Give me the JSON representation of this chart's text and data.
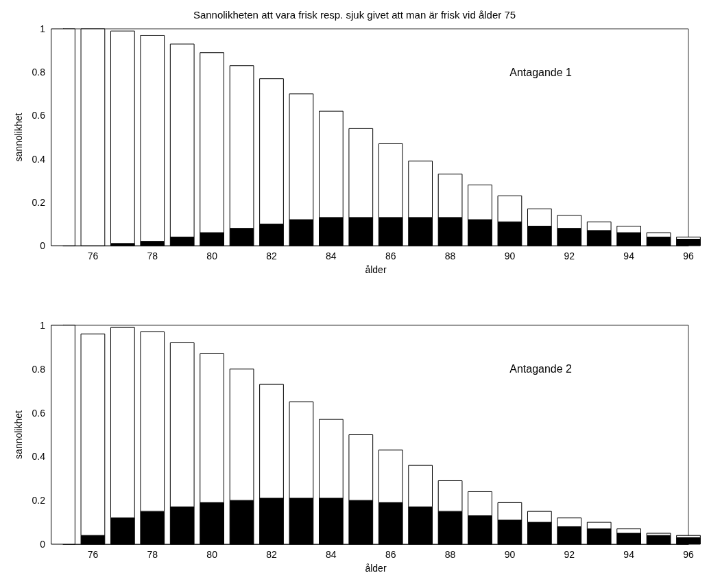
{
  "chart_data": [
    {
      "type": "bar",
      "title": "Sannolikheten att vara frisk resp. sjuk givet att man är frisk vid ålder 75",
      "xlabel": "ålder",
      "ylabel": "sannolikhet",
      "annotations": [
        "Antagande 1"
      ],
      "stacked": true,
      "x": [
        75,
        76,
        77,
        78,
        79,
        80,
        81,
        82,
        83,
        84,
        85,
        86,
        87,
        88,
        89,
        90,
        91,
        92,
        93,
        94,
        95,
        96
      ],
      "series": [
        {
          "color": "#000000",
          "values": [
            0,
            0,
            0.01,
            0.02,
            0.04,
            0.06,
            0.08,
            0.1,
            0.12,
            0.13,
            0.13,
            0.13,
            0.13,
            0.13,
            0.12,
            0.11,
            0.09,
            0.08,
            0.07,
            0.06,
            0.04,
            0.03
          ]
        },
        {
          "color": "#ffffff",
          "values": [
            1,
            1,
            0.98,
            0.95,
            0.89,
            0.83,
            0.75,
            0.67,
            0.58,
            0.49,
            0.41,
            0.34,
            0.26,
            0.2,
            0.16,
            0.12,
            0.08,
            0.06,
            0.04,
            0.03,
            0.02,
            0.01
          ]
        }
      ],
      "xlim": [
        75,
        96
      ],
      "xticks": [
        76,
        78,
        80,
        82,
        84,
        86,
        88,
        90,
        92,
        94,
        96
      ],
      "ylim": [
        0,
        1
      ],
      "yticks": [
        0,
        0.2,
        0.4,
        0.6,
        0.8,
        1
      ],
      "grid": false
    },
    {
      "type": "bar",
      "xlabel": "ålder",
      "ylabel": "sannolikhet",
      "annotations": [
        "Antagande 2"
      ],
      "stacked": true,
      "x": [
        75,
        76,
        77,
        78,
        79,
        80,
        81,
        82,
        83,
        84,
        85,
        86,
        87,
        88,
        89,
        90,
        91,
        92,
        93,
        94,
        95,
        96
      ],
      "series": [
        {
          "color": "#000000",
          "values": [
            0,
            0.04,
            0.12,
            0.15,
            0.17,
            0.19,
            0.2,
            0.21,
            0.21,
            0.21,
            0.2,
            0.19,
            0.17,
            0.15,
            0.13,
            0.11,
            0.1,
            0.08,
            0.07,
            0.05,
            0.04,
            0.03
          ]
        },
        {
          "color": "#ffffff",
          "values": [
            1,
            0.92,
            0.87,
            0.82,
            0.75,
            0.68,
            0.6,
            0.52,
            0.44,
            0.36,
            0.3,
            0.24,
            0.19,
            0.14,
            0.11,
            0.08,
            0.05,
            0.04,
            0.03,
            0.02,
            0.01,
            0.01
          ]
        }
      ],
      "xlim": [
        75,
        96
      ],
      "xticks": [
        76,
        78,
        80,
        82,
        84,
        86,
        88,
        90,
        92,
        94,
        96
      ],
      "ylim": [
        0,
        1
      ],
      "yticks": [
        0,
        0.2,
        0.4,
        0.6,
        0.8,
        1
      ],
      "grid": false
    }
  ]
}
